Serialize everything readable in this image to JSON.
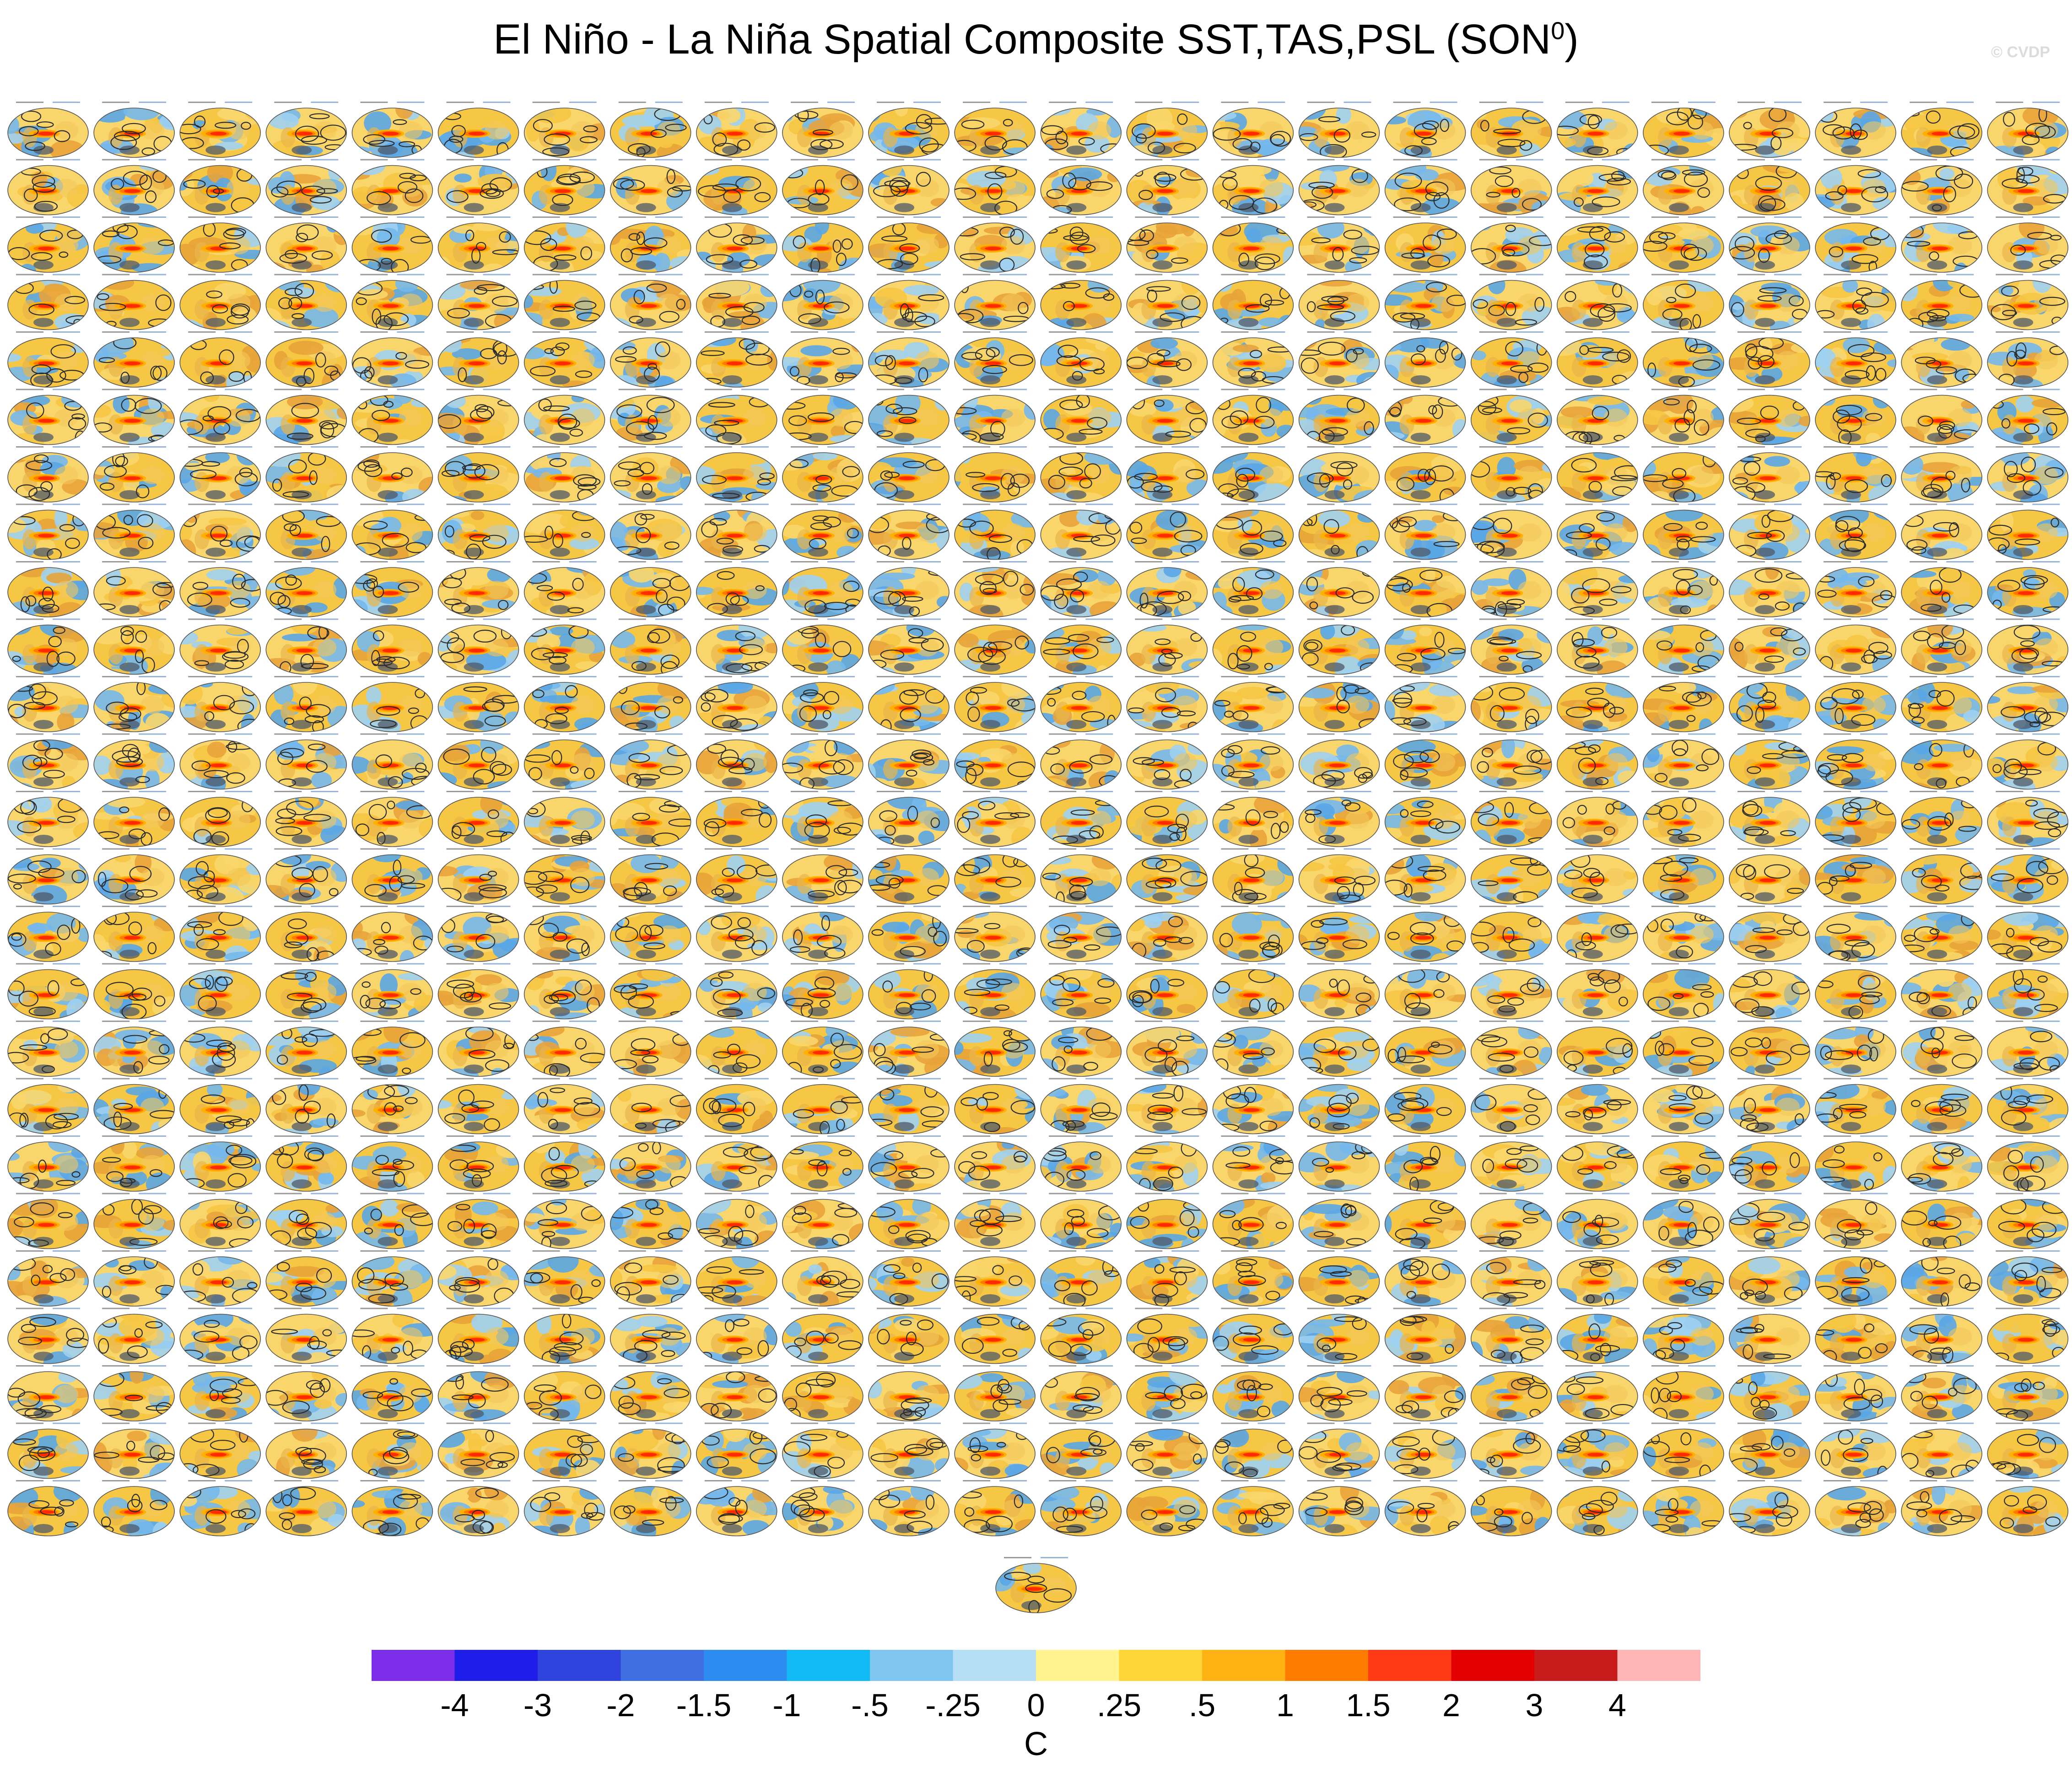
{
  "figure": {
    "title_main": "El Niño - La Niña Spatial Composite SST,TAS,PSL (SON",
    "title_sup": "0",
    "title_end": ")",
    "credit": "© CVDP"
  },
  "grid": {
    "columns": 24,
    "rows": 25,
    "extra_panels": 1,
    "ocean_colors": [
      "#f6c744",
      "#f9d66b",
      "#74b8ec",
      "#5aa6e6",
      "#e8a33a",
      "#9fd0f2"
    ],
    "nino_colors": [
      "#ff2a00",
      "#ff7b00",
      "#ffb000"
    ],
    "contour_color": "#2b2b2b"
  },
  "colorbar": {
    "colors": [
      "#7b2de8",
      "#1e1ee8",
      "#2e44dc",
      "#3f6fe0",
      "#2c8cf0",
      "#12baf5",
      "#7ec6ef",
      "#b6def4",
      "#fff48f",
      "#ffd436",
      "#ffb214",
      "#ff7c00",
      "#ff3a14",
      "#e30000",
      "#c81c1c",
      "#ffb6b6"
    ],
    "labels": [
      "-4",
      "-3",
      "-2",
      "-1.5",
      "-1",
      "-.5",
      "-.25",
      "0",
      ".25",
      ".5",
      "1",
      "1.5",
      "2",
      "3",
      "4"
    ],
    "unit": "C"
  }
}
